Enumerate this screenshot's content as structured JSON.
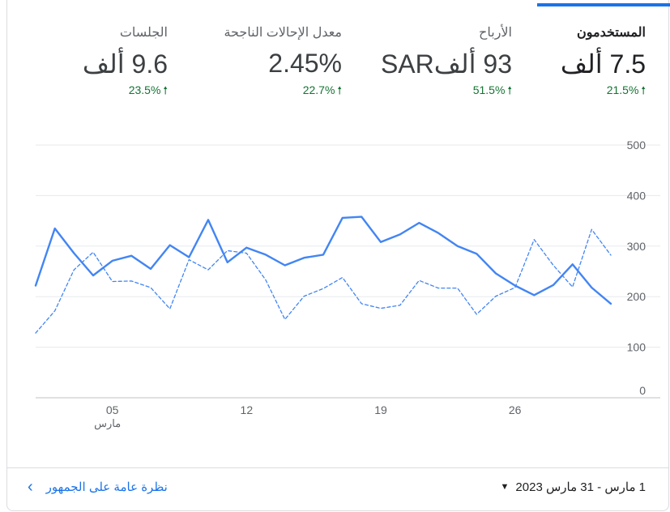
{
  "metrics": [
    {
      "label": "المستخدمون",
      "value": "7.5 ألف",
      "change": "21.5%",
      "active": true
    },
    {
      "label": "الأرباح",
      "value": "93 ألفSAR",
      "change": "51.5%",
      "active": false
    },
    {
      "label": "معدل الإحالات الناجحة",
      "value": "2.45%",
      "change": "22.7%",
      "active": false
    },
    {
      "label": "الجلسات",
      "value": "9.6 ألف",
      "change": "23.5%",
      "active": false
    }
  ],
  "chart_data": {
    "type": "line",
    "x": [
      1,
      2,
      3,
      4,
      5,
      6,
      7,
      8,
      9,
      10,
      11,
      12,
      13,
      14,
      15,
      16,
      17,
      18,
      19,
      20,
      21,
      22,
      23,
      24,
      25,
      26,
      27,
      28,
      29,
      30,
      31
    ],
    "x_tick_labels": [
      "05",
      "12",
      "19",
      "26"
    ],
    "x_tick_values": [
      5,
      12,
      19,
      26
    ],
    "x_sublabel": "مارس",
    "y_ticks": [
      0,
      100,
      200,
      300,
      400,
      500
    ],
    "ylim": [
      0,
      500
    ],
    "grid": true,
    "series": [
      {
        "style": "solid",
        "color": "#4285f4",
        "values": [
          222,
          335,
          286,
          242,
          271,
          281,
          255,
          302,
          278,
          352,
          268,
          297,
          283,
          262,
          277,
          283,
          356,
          358,
          308,
          323,
          346,
          326,
          300,
          285,
          246,
          222,
          203,
          223,
          264,
          218,
          186
        ]
      },
      {
        "style": "dashed",
        "color": "#4285f4",
        "values": [
          128,
          172,
          253,
          288,
          230,
          231,
          218,
          176,
          273,
          253,
          291,
          286,
          233,
          155,
          201,
          216,
          238,
          186,
          177,
          183,
          232,
          217,
          217,
          165,
          201,
          218,
          313,
          262,
          219,
          333,
          282
        ]
      }
    ]
  },
  "footer": {
    "date_range": "1 مارس - 31 مارس 2023",
    "link": "نظرة عامة على الجمهور"
  },
  "icons": {
    "up_arrow": "arrow-up-icon",
    "caret": "caret-down-icon",
    "chevron": "chevron-left-icon"
  }
}
